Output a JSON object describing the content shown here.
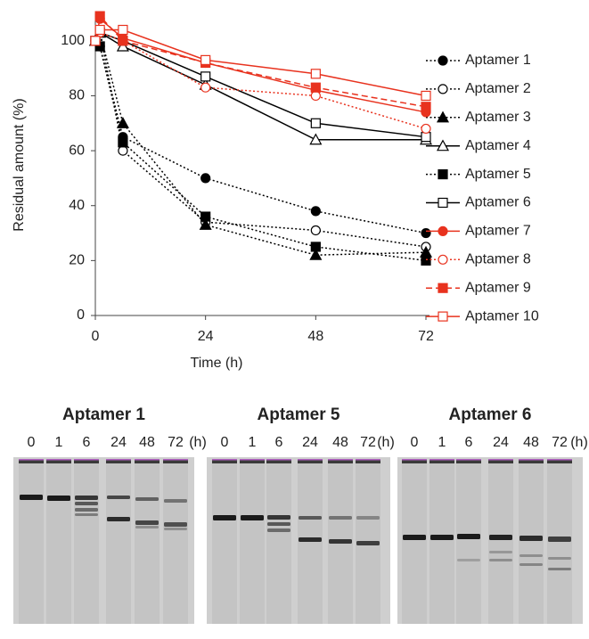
{
  "chart_data": {
    "type": "line",
    "x": [
      0,
      1,
      6,
      24,
      48,
      72
    ],
    "xlim": [
      0,
      72
    ],
    "xticks": [
      0,
      24,
      48,
      72
    ],
    "ylim": [
      0,
      110
    ],
    "yticks": [
      0,
      20,
      40,
      60,
      80,
      100
    ],
    "x_label": "Time (h)",
    "y_label": "Residual amount (%)",
    "legend": "right",
    "series": [
      {
        "name": "Aptamer 1",
        "color": "#000000",
        "marker": "circle",
        "filled": true,
        "dash": "dotted",
        "values": [
          100,
          98,
          65,
          50,
          38,
          30
        ]
      },
      {
        "name": "Aptamer 2",
        "color": "#000000",
        "marker": "circle",
        "filled": false,
        "dash": "dotted",
        "values": [
          100,
          103,
          60,
          34,
          31,
          25
        ]
      },
      {
        "name": "Aptamer 3",
        "color": "#000000",
        "marker": "triangle",
        "filled": true,
        "dash": "dotted",
        "values": [
          100,
          103,
          70,
          33,
          22,
          23
        ]
      },
      {
        "name": "Aptamer 4",
        "color": "#000000",
        "marker": "triangle",
        "filled": false,
        "dash": "solid",
        "values": [
          100,
          103,
          98,
          84,
          64,
          64
        ]
      },
      {
        "name": "Aptamer 5",
        "color": "#000000",
        "marker": "square",
        "filled": true,
        "dash": "dotted",
        "values": [
          100,
          98,
          63,
          36,
          25,
          20
        ]
      },
      {
        "name": "Aptamer 6",
        "color": "#000000",
        "marker": "square",
        "filled": false,
        "dash": "solid",
        "values": [
          100,
          103,
          100,
          87,
          70,
          65
        ]
      },
      {
        "name": "Aptamer 7",
        "color": "#e8321e",
        "marker": "circle",
        "filled": true,
        "dash": "solid",
        "values": [
          100,
          108,
          101,
          92,
          82,
          74
        ]
      },
      {
        "name": "Aptamer 8",
        "color": "#e8321e",
        "marker": "circle",
        "filled": false,
        "dash": "dotted",
        "values": [
          100,
          103,
          100,
          83,
          80,
          68
        ]
      },
      {
        "name": "Aptamer 9",
        "color": "#e8321e",
        "marker": "square",
        "filled": true,
        "dash": "dashed",
        "values": [
          100,
          109,
          100,
          92,
          83,
          76
        ]
      },
      {
        "name": "Aptamer 10",
        "color": "#e8321e",
        "marker": "square",
        "filled": false,
        "dash": "solid",
        "values": [
          100,
          104,
          104,
          93,
          88,
          80
        ]
      }
    ]
  },
  "gels": [
    {
      "title": "Aptamer 1",
      "lanes": [
        "0",
        "1",
        "6",
        "24",
        "48",
        "72"
      ],
      "unit": "(h)"
    },
    {
      "title": "Aptamer 5",
      "lanes": [
        "0",
        "1",
        "6",
        "24",
        "48",
        "72"
      ],
      "unit": "(h)"
    },
    {
      "title": "Aptamer 6",
      "lanes": [
        "0",
        "1",
        "6",
        "24",
        "48",
        "72"
      ],
      "unit": "(h)"
    }
  ]
}
